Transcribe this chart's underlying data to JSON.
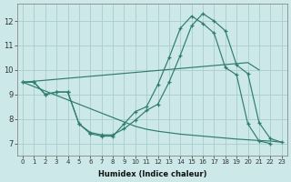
{
  "x": [
    0,
    1,
    2,
    3,
    4,
    5,
    6,
    7,
    8,
    9,
    10,
    11,
    12,
    13,
    14,
    15,
    16,
    17,
    18,
    19,
    20,
    21,
    22,
    23
  ],
  "curve1": [
    9.5,
    9.5,
    9.0,
    9.1,
    9.1,
    7.8,
    7.4,
    7.3,
    7.3,
    7.8,
    8.3,
    8.5,
    9.4,
    10.5,
    11.7,
    12.2,
    11.9,
    11.5,
    10.1,
    9.8,
    7.8,
    7.1,
    7.0,
    null
  ],
  "curve2": [
    9.5,
    9.5,
    9.0,
    9.1,
    9.1,
    7.8,
    7.45,
    7.35,
    7.35,
    7.6,
    7.95,
    8.35,
    8.6,
    9.5,
    10.6,
    11.8,
    12.3,
    12.0,
    11.6,
    10.2,
    9.85,
    7.85,
    7.2,
    7.05
  ],
  "trend_upper": [
    9.5,
    9.54,
    9.58,
    9.62,
    9.66,
    9.7,
    9.74,
    9.78,
    9.82,
    9.86,
    9.9,
    9.94,
    9.98,
    10.02,
    10.06,
    10.1,
    10.14,
    10.18,
    10.22,
    10.26,
    10.3,
    10.0,
    null,
    null
  ],
  "trend_lower": [
    9.5,
    9.32,
    9.14,
    8.96,
    8.78,
    8.6,
    8.42,
    8.24,
    8.06,
    7.88,
    7.7,
    7.58,
    7.5,
    7.44,
    7.38,
    7.34,
    7.3,
    7.26,
    7.22,
    7.18,
    7.15,
    7.12,
    7.1,
    7.05
  ],
  "line_color": "#2e7d6e",
  "bg_color": "#cce8e8",
  "grid_color": "#aacccc",
  "xlabel": "Humidex (Indice chaleur)",
  "ylim": [
    6.5,
    12.7
  ],
  "xlim": [
    -0.5,
    23.5
  ],
  "yticks": [
    7,
    8,
    9,
    10,
    11,
    12
  ],
  "xticks": [
    0,
    1,
    2,
    3,
    4,
    5,
    6,
    7,
    8,
    9,
    10,
    11,
    12,
    13,
    14,
    15,
    16,
    17,
    18,
    19,
    20,
    21,
    22,
    23
  ]
}
